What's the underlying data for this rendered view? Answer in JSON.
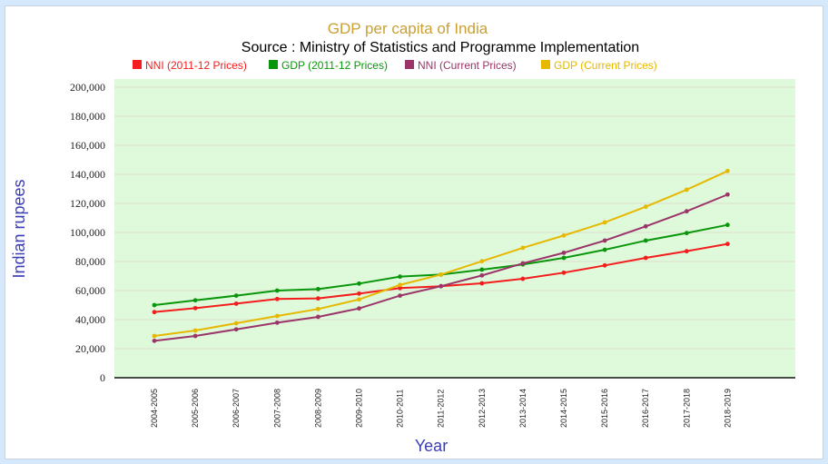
{
  "chart_data": {
    "type": "line",
    "title": "GDP per capita of India",
    "subtitle": "Source : Ministry of Statistics and Programme Implementation",
    "xlabel": "Year",
    "ylabel": "Indian rupees",
    "ylim": [
      0,
      200000
    ],
    "yticks": [
      0,
      20000,
      40000,
      60000,
      80000,
      100000,
      120000,
      140000,
      160000,
      180000,
      200000
    ],
    "ytick_labels": [
      "0",
      "20,000",
      "40,000",
      "60,000",
      "80,000",
      "100,000",
      "120,000",
      "140,000",
      "160,000",
      "180,000",
      "200,000"
    ],
    "grid": true,
    "legend_position": "top",
    "plot_background": "#dffadb",
    "categories": [
      "2004-2005",
      "2005-2006",
      "2006-2007",
      "2007-2008",
      "2008-2009",
      "2009-2010",
      "2010-2011",
      "2011-2012",
      "2012-2013",
      "2013-2014",
      "2014-2015",
      "2015-2016",
      "2016-2017",
      "2017-2018",
      "2018-2019"
    ],
    "series": [
      {
        "name": "NNI (2011-12 Prices)",
        "color": "#f41c1c",
        "values": [
          45200,
          47900,
          51000,
          54200,
          54600,
          57900,
          61700,
          63000,
          65000,
          68100,
          72300,
          77300,
          82500,
          87100,
          92100
        ]
      },
      {
        "name": "GDP (2011-12 Prices)",
        "color": "#0a960a",
        "values": [
          50000,
          53300,
          56500,
          60000,
          61000,
          64800,
          69600,
          71000,
          74400,
          78000,
          82500,
          88100,
          94400,
          99600,
          105200
        ]
      },
      {
        "name": "NNI (Current Prices)",
        "color": "#9b3469",
        "values": [
          25400,
          28750,
          33300,
          37900,
          41900,
          47700,
          56500,
          63000,
          70400,
          78700,
          86000,
          94400,
          104200,
          114600,
          126100
        ]
      },
      {
        "name": "GDP (Current Prices)",
        "color": "#e6b800",
        "values": [
          28750,
          32500,
          37500,
          42500,
          47300,
          53900,
          63900,
          71000,
          80200,
          89400,
          97900,
          106900,
          117700,
          129400,
          142300
        ]
      }
    ]
  }
}
